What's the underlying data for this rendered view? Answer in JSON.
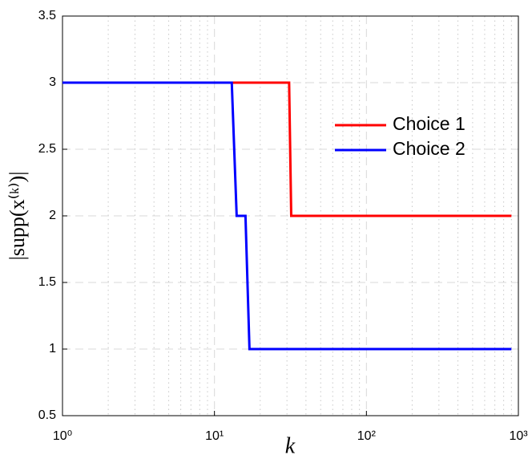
{
  "chart_data": {
    "type": "line",
    "xlabel": "k",
    "ylabel": "|supp(x⁽ᵏ⁾)|",
    "xscale": "log",
    "xlim": [
      1,
      1000
    ],
    "xticks": [
      {
        "value": 1,
        "label": "10⁰"
      },
      {
        "value": 10,
        "label": "10¹"
      },
      {
        "value": 100,
        "label": "10²"
      },
      {
        "value": 1000,
        "label": "10³"
      }
    ],
    "xminorticks": [
      2,
      3,
      4,
      5,
      6,
      7,
      8,
      9,
      20,
      30,
      40,
      50,
      60,
      70,
      80,
      90,
      200,
      300,
      400,
      500,
      600,
      700,
      800,
      900
    ],
    "ylim": [
      0.5,
      3.5
    ],
    "yticks": [
      0.5,
      1,
      1.5,
      2,
      2.5,
      3,
      3.5
    ],
    "grid": true,
    "legend": "upper right",
    "series": [
      {
        "name": "Choice 1",
        "color": "#ff0000",
        "x": [
          1,
          31,
          32,
          900
        ],
        "values": [
          3,
          3,
          2,
          2
        ]
      },
      {
        "name": "Choice 2",
        "color": "#0000ff",
        "x": [
          1,
          13,
          14,
          16,
          17,
          900
        ],
        "values": [
          3,
          3,
          2,
          2,
          1,
          1
        ]
      }
    ]
  }
}
